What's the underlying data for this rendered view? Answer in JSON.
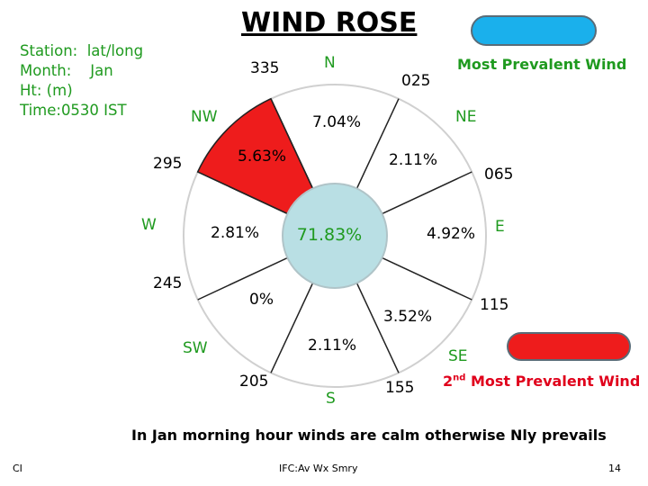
{
  "title": "WIND ROSE",
  "station": {
    "line1": "Station:  lat/long",
    "line2": "Month:    Jan",
    "line3": "Ht: (m)",
    "line4": "Time:0530 IST"
  },
  "legend": {
    "most_prevalent": "Most Prevalent Wind",
    "most_prevalent_color": "#1ab0ec",
    "second_prefix": "2",
    "second_sup": "nd",
    "second_suffix": " Most Prevalent Wind",
    "second_color": "#ee1c1c"
  },
  "compass": {
    "N": "N",
    "NE": "NE",
    "E": "E",
    "SE": "SE",
    "S": "S",
    "SW": "SW",
    "W": "W",
    "NW": "NW"
  },
  "degrees": {
    "d335": "335",
    "d025": "025",
    "d065": "065",
    "d115": "115",
    "d155": "155",
    "d205": "205",
    "d245": "245",
    "d295": "295"
  },
  "sectors": {
    "N": "7.04%",
    "NE": "2.11%",
    "E": "4.92%",
    "SE": "3.52%",
    "S": "2.11%",
    "SW": "0%",
    "W": "2.81%",
    "NW": "5.63%"
  },
  "calm": "71.83%",
  "calm_color": "#b9dfe4",
  "nw_color": "#ee1c1c",
  "note": "In Jan morning hour winds are calm otherwise Nly prevails",
  "footer": {
    "left": "CI",
    "center": "IFC:Av Wx Smry",
    "page": "14"
  }
}
